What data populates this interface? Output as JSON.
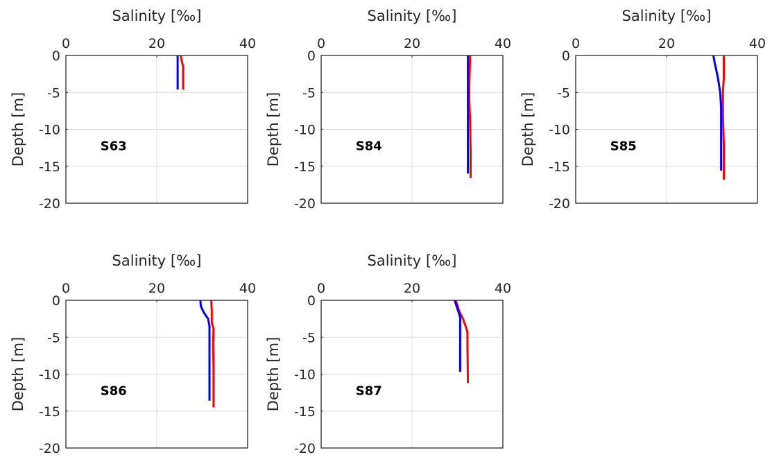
{
  "colors": {
    "red": "#ff0000",
    "blue": "#0000ff",
    "grid": "#dcdcdc",
    "axis": "#262626"
  },
  "chart_data": [
    {
      "type": "line",
      "station": "S63",
      "xlabel": "Salinity [‰]",
      "ylabel": "Depth [m]",
      "xlim": [
        0,
        40
      ],
      "ylim": [
        -20,
        0
      ],
      "xticks": [
        "0",
        "20",
        "40"
      ],
      "yticks": [
        "0",
        "-5",
        "-10",
        "-15",
        "-20"
      ],
      "grid": true,
      "series": [
        {
          "color": "red",
          "x": [
            25.3,
            25.4,
            25.6,
            25.8,
            25.8,
            25.8
          ],
          "y": [
            0,
            -0.5,
            -1,
            -1.5,
            -3,
            -4.6
          ]
        },
        {
          "color": "blue",
          "x": [
            24.6,
            24.6,
            24.6,
            24.6
          ],
          "y": [
            0,
            -1.5,
            -3,
            -4.6
          ]
        }
      ]
    },
    {
      "type": "line",
      "station": "S84",
      "xlabel": "Salinity [‰]",
      "ylabel": "Depth [m]",
      "xlim": [
        0,
        40
      ],
      "ylim": [
        -20,
        0
      ],
      "xticks": [
        "0",
        "20",
        "40"
      ],
      "yticks": [
        "0",
        "-5",
        "-10",
        "-15",
        "-20"
      ],
      "grid": true,
      "series": [
        {
          "color": "red",
          "x": [
            32.8,
            32.6,
            32.6,
            32.8,
            32.9,
            32.9
          ],
          "y": [
            0,
            -4,
            -6,
            -9,
            -13,
            -16.6
          ]
        },
        {
          "color": "blue",
          "x": [
            32.3,
            32.3,
            32.3,
            32.3
          ],
          "y": [
            0,
            -5,
            -10,
            -16
          ]
        }
      ]
    },
    {
      "type": "line",
      "station": "S85",
      "xlabel": "Salinity [‰]",
      "ylabel": "Depth [m]",
      "xlim": [
        0,
        40
      ],
      "ylim": [
        -20,
        0
      ],
      "xticks": [
        "0",
        "20",
        "40"
      ],
      "yticks": [
        "0",
        "-5",
        "-10",
        "-15",
        "-20"
      ],
      "grid": true,
      "series": [
        {
          "color": "red",
          "x": [
            32.6,
            32.6,
            32.4,
            32.4,
            32.6,
            32.6
          ],
          "y": [
            0,
            -3,
            -5,
            -8,
            -12,
            -16.8
          ]
        },
        {
          "color": "blue",
          "x": [
            30.3,
            30.6,
            31.3,
            31.8,
            32.0,
            32.0,
            32.0
          ],
          "y": [
            0,
            -1,
            -3,
            -5,
            -7,
            -11,
            -15.6
          ]
        }
      ]
    },
    {
      "type": "line",
      "station": "S86",
      "xlabel": "Salinity [‰]",
      "ylabel": "Depth [m]",
      "xlim": [
        0,
        40
      ],
      "ylim": [
        -20,
        0
      ],
      "xticks": [
        "0",
        "20",
        "40"
      ],
      "yticks": [
        "0",
        "-5",
        "-10",
        "-15",
        "-20"
      ],
      "grid": true,
      "series": [
        {
          "color": "red",
          "x": [
            32.0,
            32.1,
            32.1,
            32.5,
            32.4,
            32.5,
            32.5
          ],
          "y": [
            0,
            -1.5,
            -3,
            -3.8,
            -6,
            -9,
            -14.5
          ]
        },
        {
          "color": "blue",
          "x": [
            29.6,
            29.7,
            30.4,
            31.3,
            31.6,
            31.6,
            31.6
          ],
          "y": [
            0,
            -0.8,
            -1.7,
            -2.5,
            -3.5,
            -8,
            -13.6
          ]
        }
      ]
    },
    {
      "type": "line",
      "station": "S87",
      "xlabel": "Salinity [‰]",
      "ylabel": "Depth [m]",
      "xlim": [
        0,
        40
      ],
      "ylim": [
        -20,
        0
      ],
      "xticks": [
        "0",
        "20",
        "40"
      ],
      "yticks": [
        "0",
        "-5",
        "-10",
        "-15",
        "-20"
      ],
      "grid": true,
      "series": [
        {
          "color": "red",
          "x": [
            29.6,
            29.9,
            30.4,
            31.2,
            31.8,
            32.2,
            32.2,
            32.3
          ],
          "y": [
            0,
            -0.5,
            -1.5,
            -2.5,
            -3.5,
            -4.3,
            -6,
            -11.2
          ]
        },
        {
          "color": "blue",
          "x": [
            29.4,
            29.8,
            30.2,
            30.6,
            30.6,
            30.6
          ],
          "y": [
            0,
            -0.8,
            -1.5,
            -2.3,
            -5,
            -9.7
          ]
        }
      ]
    }
  ]
}
